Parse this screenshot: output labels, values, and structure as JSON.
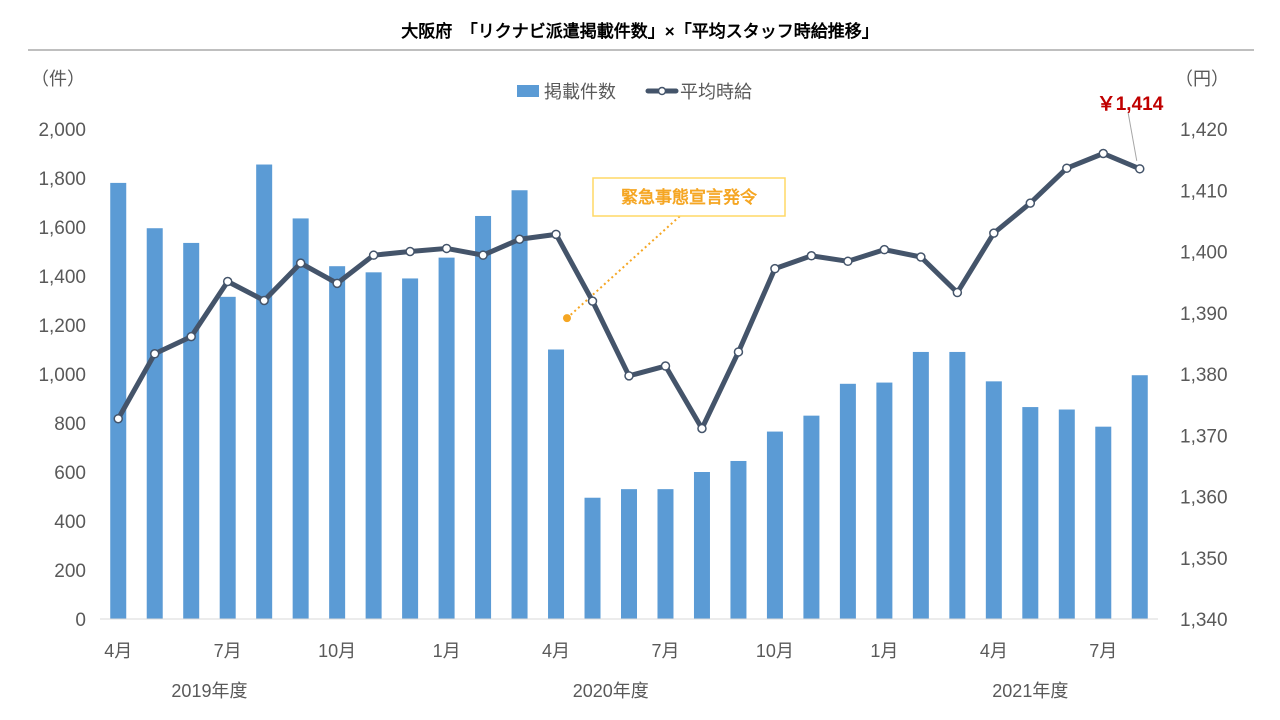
{
  "chart_data": {
    "type": "bar+line",
    "title": "大阪府　「リクナビ派遣掲載件数」×「平均スタッフ時給推移」",
    "left_axis": {
      "unit": "（件）",
      "range": [
        0,
        2000
      ],
      "ticks": [
        "0",
        "200",
        "400",
        "600",
        "800",
        "1,000",
        "1,200",
        "1,400",
        "1,600",
        "1,800",
        "2,000"
      ]
    },
    "right_axis": {
      "unit": "（円）",
      "range": [
        1340,
        1420
      ],
      "ticks": [
        "1,340",
        "1,350",
        "1,360",
        "1,370",
        "1,380",
        "1,390",
        "1,400",
        "1,410",
        "1,420"
      ]
    },
    "x_month_labels": [
      {
        "index": 0,
        "label": "4月"
      },
      {
        "index": 3,
        "label": "7月"
      },
      {
        "index": 6,
        "label": "10月"
      },
      {
        "index": 9,
        "label": "1月"
      },
      {
        "index": 12,
        "label": "4月"
      },
      {
        "index": 15,
        "label": "7月"
      },
      {
        "index": 18,
        "label": "10月"
      },
      {
        "index": 21,
        "label": "1月"
      },
      {
        "index": 24,
        "label": "4月"
      },
      {
        "index": 27,
        "label": "7月"
      }
    ],
    "x_year_labels": [
      {
        "index": 2.5,
        "label": "2019年度"
      },
      {
        "index": 13.5,
        "label": "2020年度"
      },
      {
        "index": 25,
        "label": "2021年度"
      }
    ],
    "legend": {
      "position": "top-center",
      "bar_label": "掲載件数",
      "line_label": "平均時給"
    },
    "bar_color": "#5B9BD5",
    "line_color": "#44546A",
    "series": [
      {
        "name": "掲載件数",
        "axis": "left",
        "values": [
          1780,
          1595,
          1535,
          1315,
          1855,
          1635,
          1440,
          1415,
          1390,
          1475,
          1645,
          1750,
          1100,
          495,
          530,
          530,
          600,
          645,
          765,
          830,
          960,
          965,
          1090,
          1090,
          970,
          865,
          855,
          785,
          995
        ]
      },
      {
        "name": "平均時給",
        "axis": "right",
        "values": [
          1372.7,
          1383.3,
          1386.1,
          1395.1,
          1392.0,
          1398.1,
          1394.8,
          1399.4,
          1400.0,
          1400.5,
          1399.4,
          1402.0,
          1402.8,
          1391.9,
          1379.7,
          1381.3,
          1371.1,
          1383.6,
          1397.2,
          1399.3,
          1398.4,
          1400.3,
          1399.1,
          1393.3,
          1403.0,
          1407.9,
          1413.6,
          1416.0,
          1413.5
        ]
      }
    ],
    "callout": {
      "text": "緊急事態宣言発令",
      "color": "#F5A623",
      "anchor_index": 12.3,
      "anchor_value": 1228
    },
    "end_label": {
      "text": "￥1,414",
      "color": "#C00000"
    }
  }
}
